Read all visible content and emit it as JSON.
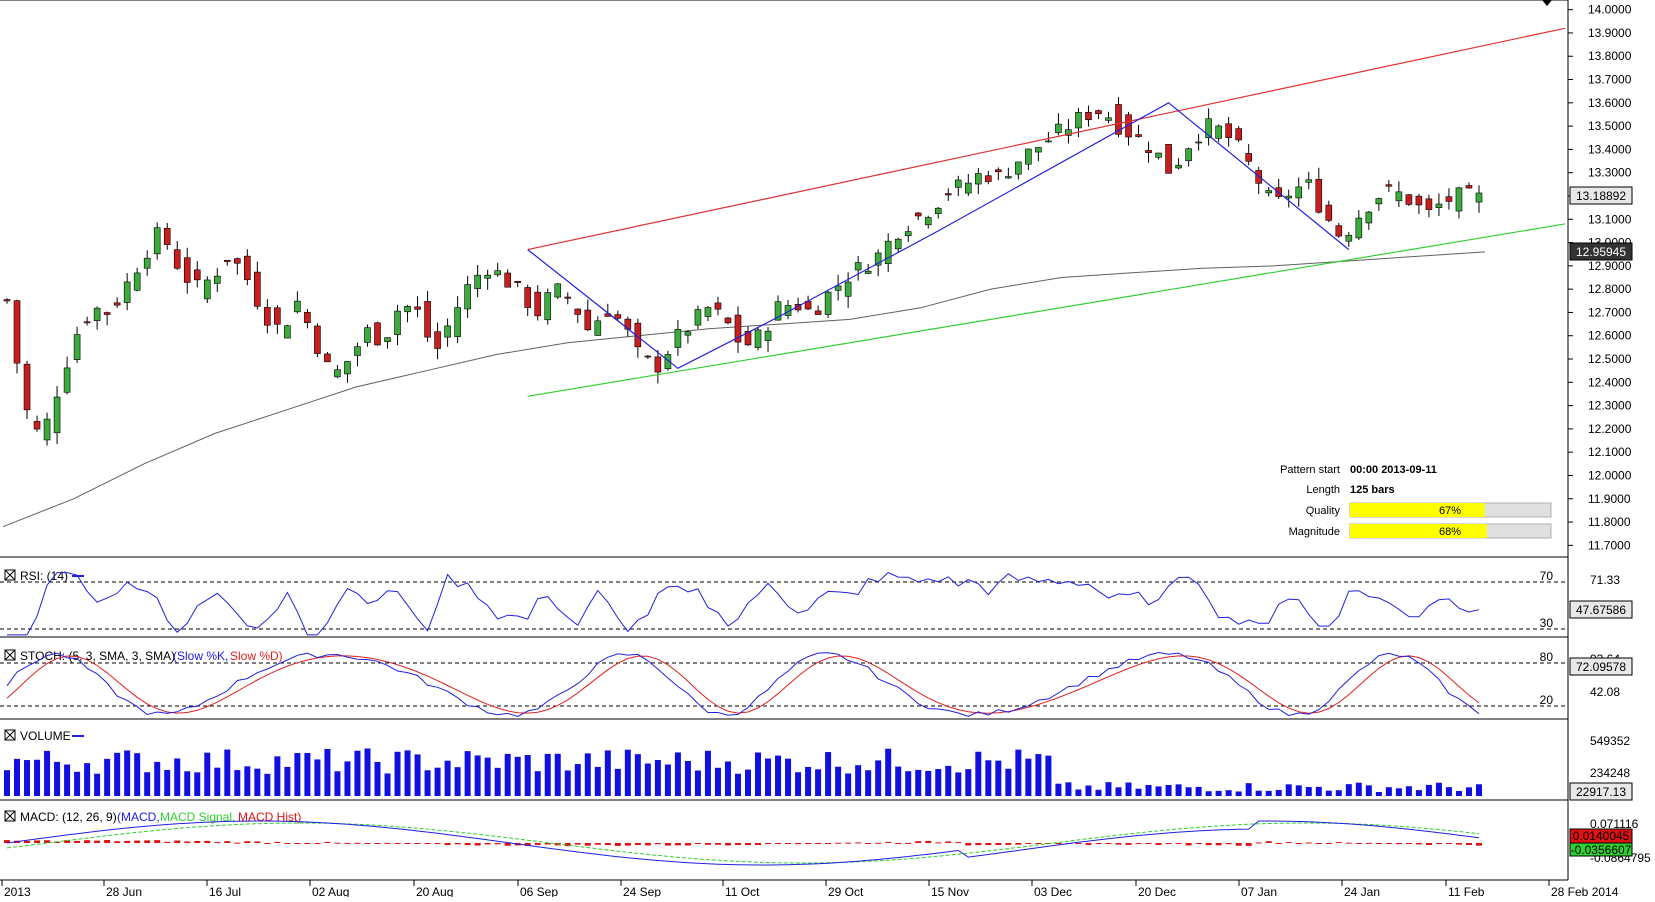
{
  "chart_data": [
    {
      "type": "candlestick",
      "panel": "price",
      "x_ticks": [
        "2013",
        "28 Jun",
        "16 Jul",
        "02 Aug",
        "20 Aug",
        "06 Sep",
        "24 Sep",
        "11 Oct",
        "29 Oct",
        "15 Nov",
        "03 Dec",
        "20 Dec",
        "07 Jan",
        "24 Jan",
        "11 Feb",
        "28 Feb 2014"
      ],
      "y_ticks": [
        "14.0000",
        "13.9000",
        "13.8000",
        "13.7000",
        "13.6000",
        "13.5000",
        "13.4000",
        "13.3000",
        "13.2000",
        "13.1000",
        "13.0000",
        "12.9000",
        "12.8000",
        "12.7000",
        "12.6000",
        "12.5000",
        "12.4000",
        "12.3000",
        "12.2000",
        "12.1000",
        "12.0000",
        "11.9000",
        "11.8000",
        "11.7000"
      ],
      "ylim": [
        11.68,
        14.02
      ],
      "last_price": "13.18892",
      "ma_last": "12.95945",
      "close_path": [
        12.75,
        12.3,
        12.15,
        12.38,
        12.6,
        12.72,
        12.7,
        12.82,
        12.95,
        13.05,
        12.9,
        12.8,
        12.85,
        12.95,
        12.85,
        12.7,
        12.62,
        12.75,
        12.58,
        12.42,
        12.5,
        12.62,
        12.58,
        12.74,
        12.7,
        12.52,
        12.68,
        12.82,
        12.9,
        12.85,
        12.78,
        12.7,
        12.8,
        12.75,
        12.62,
        12.72,
        12.65,
        12.5,
        12.47,
        12.58,
        12.65,
        12.72,
        12.66,
        12.55,
        12.6,
        12.72,
        12.74,
        12.7,
        12.78,
        12.85,
        12.9,
        12.95,
        13.05,
        13.1,
        13.15,
        13.22,
        13.25,
        13.3,
        13.28,
        13.35,
        13.4,
        13.45,
        13.5,
        13.55,
        13.57,
        13.5,
        13.45,
        13.4,
        13.3,
        13.42,
        13.5,
        13.48,
        13.4,
        13.28,
        13.15,
        13.22,
        13.25,
        13.12,
        13.02,
        13.12,
        13.2,
        13.22,
        13.18,
        13.12,
        13.18,
        13.2,
        13.19
      ],
      "candle_count": 148,
      "channel_upper": {
        "start": 12.97,
        "end": 13.92
      },
      "channel_lower": {
        "start": 12.34,
        "end": 13.08
      },
      "ma_path": [
        11.78,
        11.9,
        12.05,
        12.18,
        12.28,
        12.38,
        12.45,
        12.52,
        12.57,
        12.6,
        12.63,
        12.65,
        12.67,
        12.72,
        12.8,
        12.85,
        12.87,
        12.89,
        12.9,
        12.92,
        12.94,
        12.96
      ],
      "zigzag": [
        {
          "bar": 52,
          "price": 12.97
        },
        {
          "bar": 67,
          "price": 12.46
        },
        {
          "bar": 77,
          "price": 12.68
        },
        {
          "bar": 93,
          "price": 13.05
        },
        {
          "bar": 116,
          "price": 13.6
        },
        {
          "bar": 134,
          "price": 12.97
        }
      ],
      "pattern_info": {
        "pattern_start_label": "Pattern start",
        "pattern_start_value": "00:00 2013-09-11",
        "length_label": "Length",
        "length_value": "125 bars",
        "quality_label": "Quality",
        "quality_value": "67%",
        "quality_fraction": 0.67,
        "magnitude_label": "Magnitude",
        "magnitude_value": "68%",
        "magnitude_fraction": 0.68
      },
      "colors": {
        "bull": "#3caa3c",
        "bear": "#c81e1e",
        "channel_upper": "#e03030",
        "channel_lower": "#30d030",
        "zigzag": "#2020e0",
        "ma": "#606060"
      }
    },
    {
      "type": "line",
      "panel": "rsi",
      "title": "RSI: (14)",
      "levels": [
        "70",
        "30"
      ],
      "y_ticks": [
        "71.33"
      ],
      "last_value": "47.67586",
      "ylim": [
        20,
        80
      ]
    },
    {
      "type": "line",
      "panel": "stoch",
      "title": "STOCH: (5, 3, SMA, 3, SMA)",
      "legend": [
        "(Slow %K,",
        "Slow %D)"
      ],
      "levels": [
        "80",
        "20"
      ],
      "y_ticks": [
        "93.64",
        "42.08"
      ],
      "last_value": "72.09578",
      "ylim": [
        0,
        100
      ],
      "colors": {
        "k": "#2020e0",
        "d": "#e02020"
      }
    },
    {
      "type": "bar",
      "panel": "volume",
      "title": "VOLUME",
      "y_ticks": [
        "549352",
        "234248"
      ],
      "last_value": "22917.13",
      "color": "#1010e0"
    },
    {
      "type": "line",
      "panel": "macd",
      "title": "MACD: (12, 26, 9)",
      "legend": [
        "(MACD,",
        "MACD Signal,",
        "MACD Hist)"
      ],
      "y_ticks": [
        "0.071116",
        "-0.0864795"
      ],
      "last_value_1": "0.0140045",
      "last_value_2": "-0.0356607",
      "colors": {
        "macd": "#2020e0",
        "signal": "#30d030",
        "hist": "#e01010"
      }
    }
  ]
}
